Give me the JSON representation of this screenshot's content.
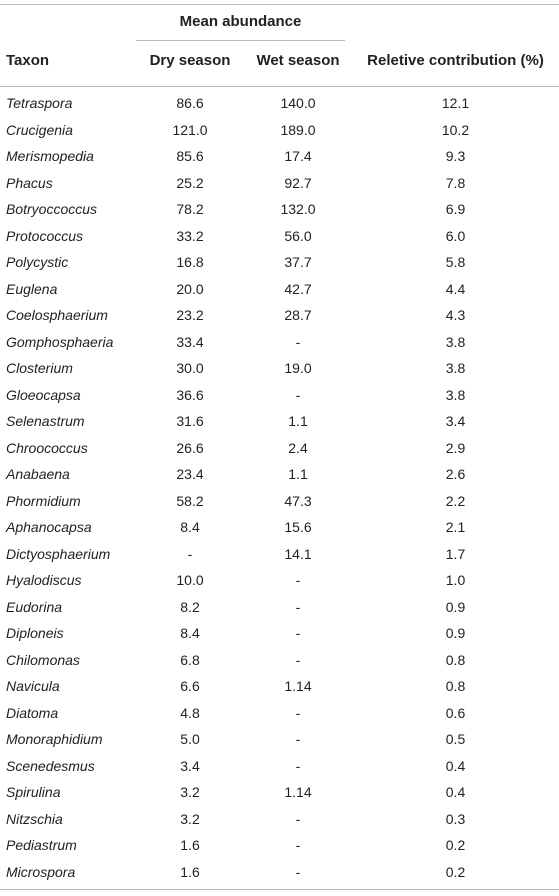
{
  "header": {
    "mean_abundance": "Mean abundance",
    "taxon": "Taxon",
    "dry_season": "Dry season",
    "wet_season": "Wet season",
    "relative_contribution": "Reletive contribution (%)"
  },
  "rows": [
    {
      "taxon": "Tetraspora",
      "dry": "86.6",
      "wet": "140.0",
      "rel": "12.1"
    },
    {
      "taxon": "Crucigenia",
      "dry": "121.0",
      "wet": "189.0",
      "rel": "10.2"
    },
    {
      "taxon": "Merismopedia",
      "dry": "85.6",
      "wet": "17.4",
      "rel": "9.3"
    },
    {
      "taxon": "Phacus",
      "dry": "25.2",
      "wet": "92.7",
      "rel": "7.8"
    },
    {
      "taxon": "Botryoccoccus",
      "dry": "78.2",
      "wet": "132.0",
      "rel": "6.9"
    },
    {
      "taxon": "Protococcus",
      "dry": "33.2",
      "wet": "56.0",
      "rel": "6.0"
    },
    {
      "taxon": "Polycystic",
      "dry": "16.8",
      "wet": "37.7",
      "rel": "5.8"
    },
    {
      "taxon": "Euglena",
      "dry": "20.0",
      "wet": "42.7",
      "rel": "4.4"
    },
    {
      "taxon": "Coelosphaerium",
      "dry": "23.2",
      "wet": "28.7",
      "rel": "4.3"
    },
    {
      "taxon": "Gomphosphaeria",
      "dry": "33.4",
      "wet": "-",
      "rel": "3.8"
    },
    {
      "taxon": "Closterium",
      "dry": "30.0",
      "wet": "19.0",
      "rel": "3.8"
    },
    {
      "taxon": "Gloeocapsa",
      "dry": "36.6",
      "wet": "-",
      "rel": "3.8"
    },
    {
      "taxon": "Selenastrum",
      "dry": "31.6",
      "wet": "1.1",
      "rel": "3.4"
    },
    {
      "taxon": "Chroococcus",
      "dry": "26.6",
      "wet": "2.4",
      "rel": "2.9"
    },
    {
      "taxon": "Anabaena",
      "dry": "23.4",
      "wet": "1.1",
      "rel": "2.6"
    },
    {
      "taxon": "Phormidium",
      "dry": "58.2",
      "wet": "47.3",
      "rel": "2.2"
    },
    {
      "taxon": "Aphanocapsa",
      "dry": "8.4",
      "wet": "15.6",
      "rel": "2.1"
    },
    {
      "taxon": "Dictyosphaerium",
      "dry": "-",
      "wet": "14.1",
      "rel": "1.7"
    },
    {
      "taxon": "Hyalodiscus",
      "dry": "10.0",
      "wet": "-",
      "rel": "1.0"
    },
    {
      "taxon": "Eudorina",
      "dry": "8.2",
      "wet": "-",
      "rel": "0.9"
    },
    {
      "taxon": "Diploneis",
      "dry": "8.4",
      "wet": "-",
      "rel": "0.9"
    },
    {
      "taxon": "Chilomonas",
      "dry": "6.8",
      "wet": "-",
      "rel": "0.8"
    },
    {
      "taxon": "Navicula",
      "dry": "6.6",
      "wet": "1.14",
      "rel": "0.8"
    },
    {
      "taxon": "Diatoma",
      "dry": "4.8",
      "wet": "-",
      "rel": "0.6"
    },
    {
      "taxon": "Monoraphidium",
      "dry": "5.0",
      "wet": "-",
      "rel": "0.5"
    },
    {
      "taxon": "Scenedesmus",
      "dry": "3.4",
      "wet": "-",
      "rel": "0.4"
    },
    {
      "taxon": "Spirulina",
      "dry": "3.2",
      "wet": "1.14",
      "rel": "0.4"
    },
    {
      "taxon": "Nitzschia",
      "dry": "3.2",
      "wet": "-",
      "rel": "0.3"
    },
    {
      "taxon": "Pediastrum",
      "dry": "1.6",
      "wet": "-",
      "rel": "0.2"
    },
    {
      "taxon": "Microspora",
      "dry": "1.6",
      "wet": "-",
      "rel": "0.2"
    }
  ]
}
